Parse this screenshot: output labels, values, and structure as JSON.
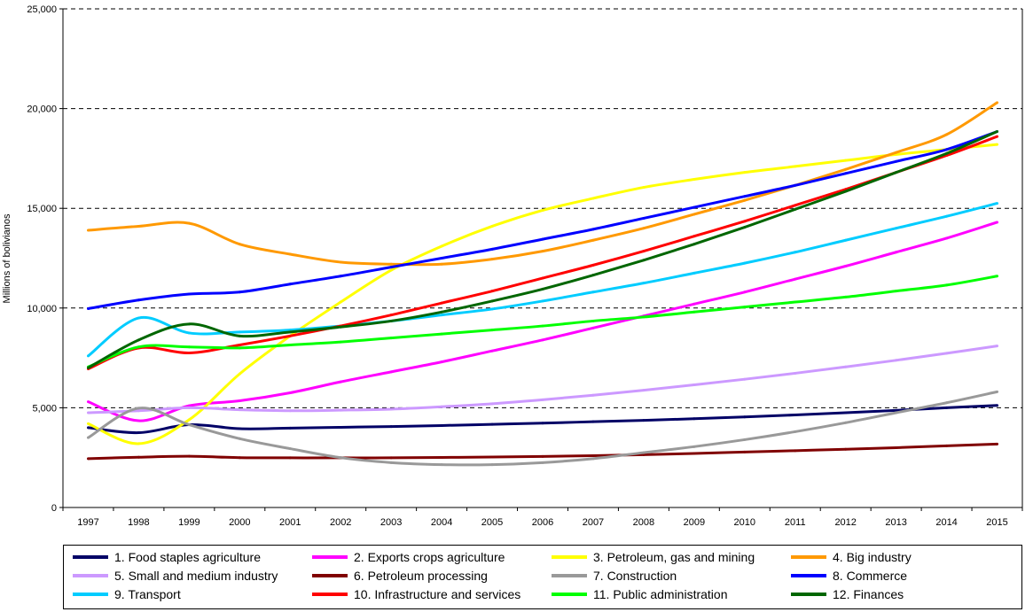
{
  "chart_data": {
    "type": "line",
    "title": "",
    "xlabel": "",
    "ylabel": "Millions of bolivianos",
    "x": [
      "1997",
      "1998",
      "1999",
      "2000",
      "2001",
      "2002",
      "2003",
      "2004",
      "2005",
      "2006",
      "2007",
      "2008",
      "2009",
      "2010",
      "2011",
      "2012",
      "2013",
      "2014",
      "2015"
    ],
    "ylim": [
      0,
      25000
    ],
    "yticks": [
      "0",
      "5,000",
      "10,000",
      "15,000",
      "20,000",
      "25,000"
    ],
    "ytick_values": [
      0,
      5000,
      10000,
      15000,
      20000,
      25000
    ],
    "grid": "horizontal dashed",
    "legend_position": "bottom",
    "series": [
      {
        "name": "1. Food staples agriculture",
        "color": "#000066",
        "values": [
          4000,
          3750,
          4150,
          3950,
          3980,
          4020,
          4060,
          4110,
          4170,
          4230,
          4300,
          4370,
          4450,
          4540,
          4640,
          4750,
          4870,
          5000,
          5120
        ]
      },
      {
        "name": "2. Exports crops agriculture",
        "color": "#ff00ff",
        "values": [
          5300,
          4350,
          5100,
          5350,
          5750,
          6300,
          6800,
          7300,
          7850,
          8400,
          9000,
          9600,
          10200,
          10800,
          11450,
          12100,
          12800,
          13500,
          14300
        ]
      },
      {
        "name": "3. Petroleum, gas and mining",
        "color": "#ffff00",
        "values": [
          4200,
          3200,
          4400,
          6700,
          8600,
          10300,
          11900,
          13100,
          14100,
          14900,
          15500,
          16050,
          16450,
          16800,
          17100,
          17400,
          17700,
          17950,
          18200
        ]
      },
      {
        "name": "4. Big industry",
        "color": "#ff9900",
        "values": [
          13900,
          14100,
          14250,
          13200,
          12700,
          12300,
          12200,
          12200,
          12450,
          12850,
          13400,
          14000,
          14700,
          15400,
          16150,
          16950,
          17800,
          18700,
          20300
        ]
      },
      {
        "name": "5. Small and medium industry",
        "color": "#cc99ff",
        "values": [
          4750,
          4850,
          5000,
          4900,
          4850,
          4880,
          4930,
          5050,
          5200,
          5400,
          5630,
          5880,
          6150,
          6430,
          6730,
          7050,
          7380,
          7730,
          8100
        ]
      },
      {
        "name": "6. Petroleum processing",
        "color": "#800000",
        "values": [
          2450,
          2520,
          2570,
          2500,
          2490,
          2490,
          2490,
          2510,
          2530,
          2560,
          2600,
          2650,
          2710,
          2780,
          2850,
          2920,
          3000,
          3090,
          3180
        ]
      },
      {
        "name": "7. Construction",
        "color": "#999999",
        "values": [
          3500,
          4980,
          4150,
          3450,
          2950,
          2500,
          2250,
          2150,
          2150,
          2250,
          2450,
          2750,
          3050,
          3400,
          3800,
          4250,
          4750,
          5250,
          5800
        ]
      },
      {
        "name": "8. Commerce",
        "color": "#0000ff",
        "values": [
          9970,
          10400,
          10700,
          10800,
          11200,
          11600,
          12050,
          12500,
          12950,
          13450,
          13950,
          14500,
          15050,
          15600,
          16150,
          16750,
          17350,
          17950,
          18850
        ]
      },
      {
        "name": "9. Transport",
        "color": "#00ccff",
        "values": [
          7600,
          9500,
          8750,
          8800,
          8900,
          9100,
          9350,
          9650,
          9950,
          10350,
          10800,
          11250,
          11750,
          12250,
          12800,
          13400,
          14000,
          14600,
          15250
        ]
      },
      {
        "name": "10. Infrastructure and services",
        "color": "#ff0000",
        "values": [
          6950,
          8000,
          7750,
          8150,
          8600,
          9100,
          9650,
          10250,
          10850,
          11500,
          12150,
          12850,
          13600,
          14350,
          15150,
          15950,
          16800,
          17650,
          18600
        ]
      },
      {
        "name": "11. Public administration",
        "color": "#00ff00",
        "values": [
          7050,
          8050,
          8050,
          8000,
          8150,
          8300,
          8500,
          8700,
          8900,
          9100,
          9350,
          9550,
          9800,
          10050,
          10300,
          10550,
          10850,
          11150,
          11600
        ]
      },
      {
        "name": "12. Finances",
        "color": "#006600",
        "values": [
          7000,
          8400,
          9200,
          8600,
          8800,
          9050,
          9350,
          9800,
          10350,
          10950,
          11650,
          12400,
          13200,
          14050,
          14950,
          15850,
          16800,
          17750,
          18850
        ]
      }
    ]
  }
}
